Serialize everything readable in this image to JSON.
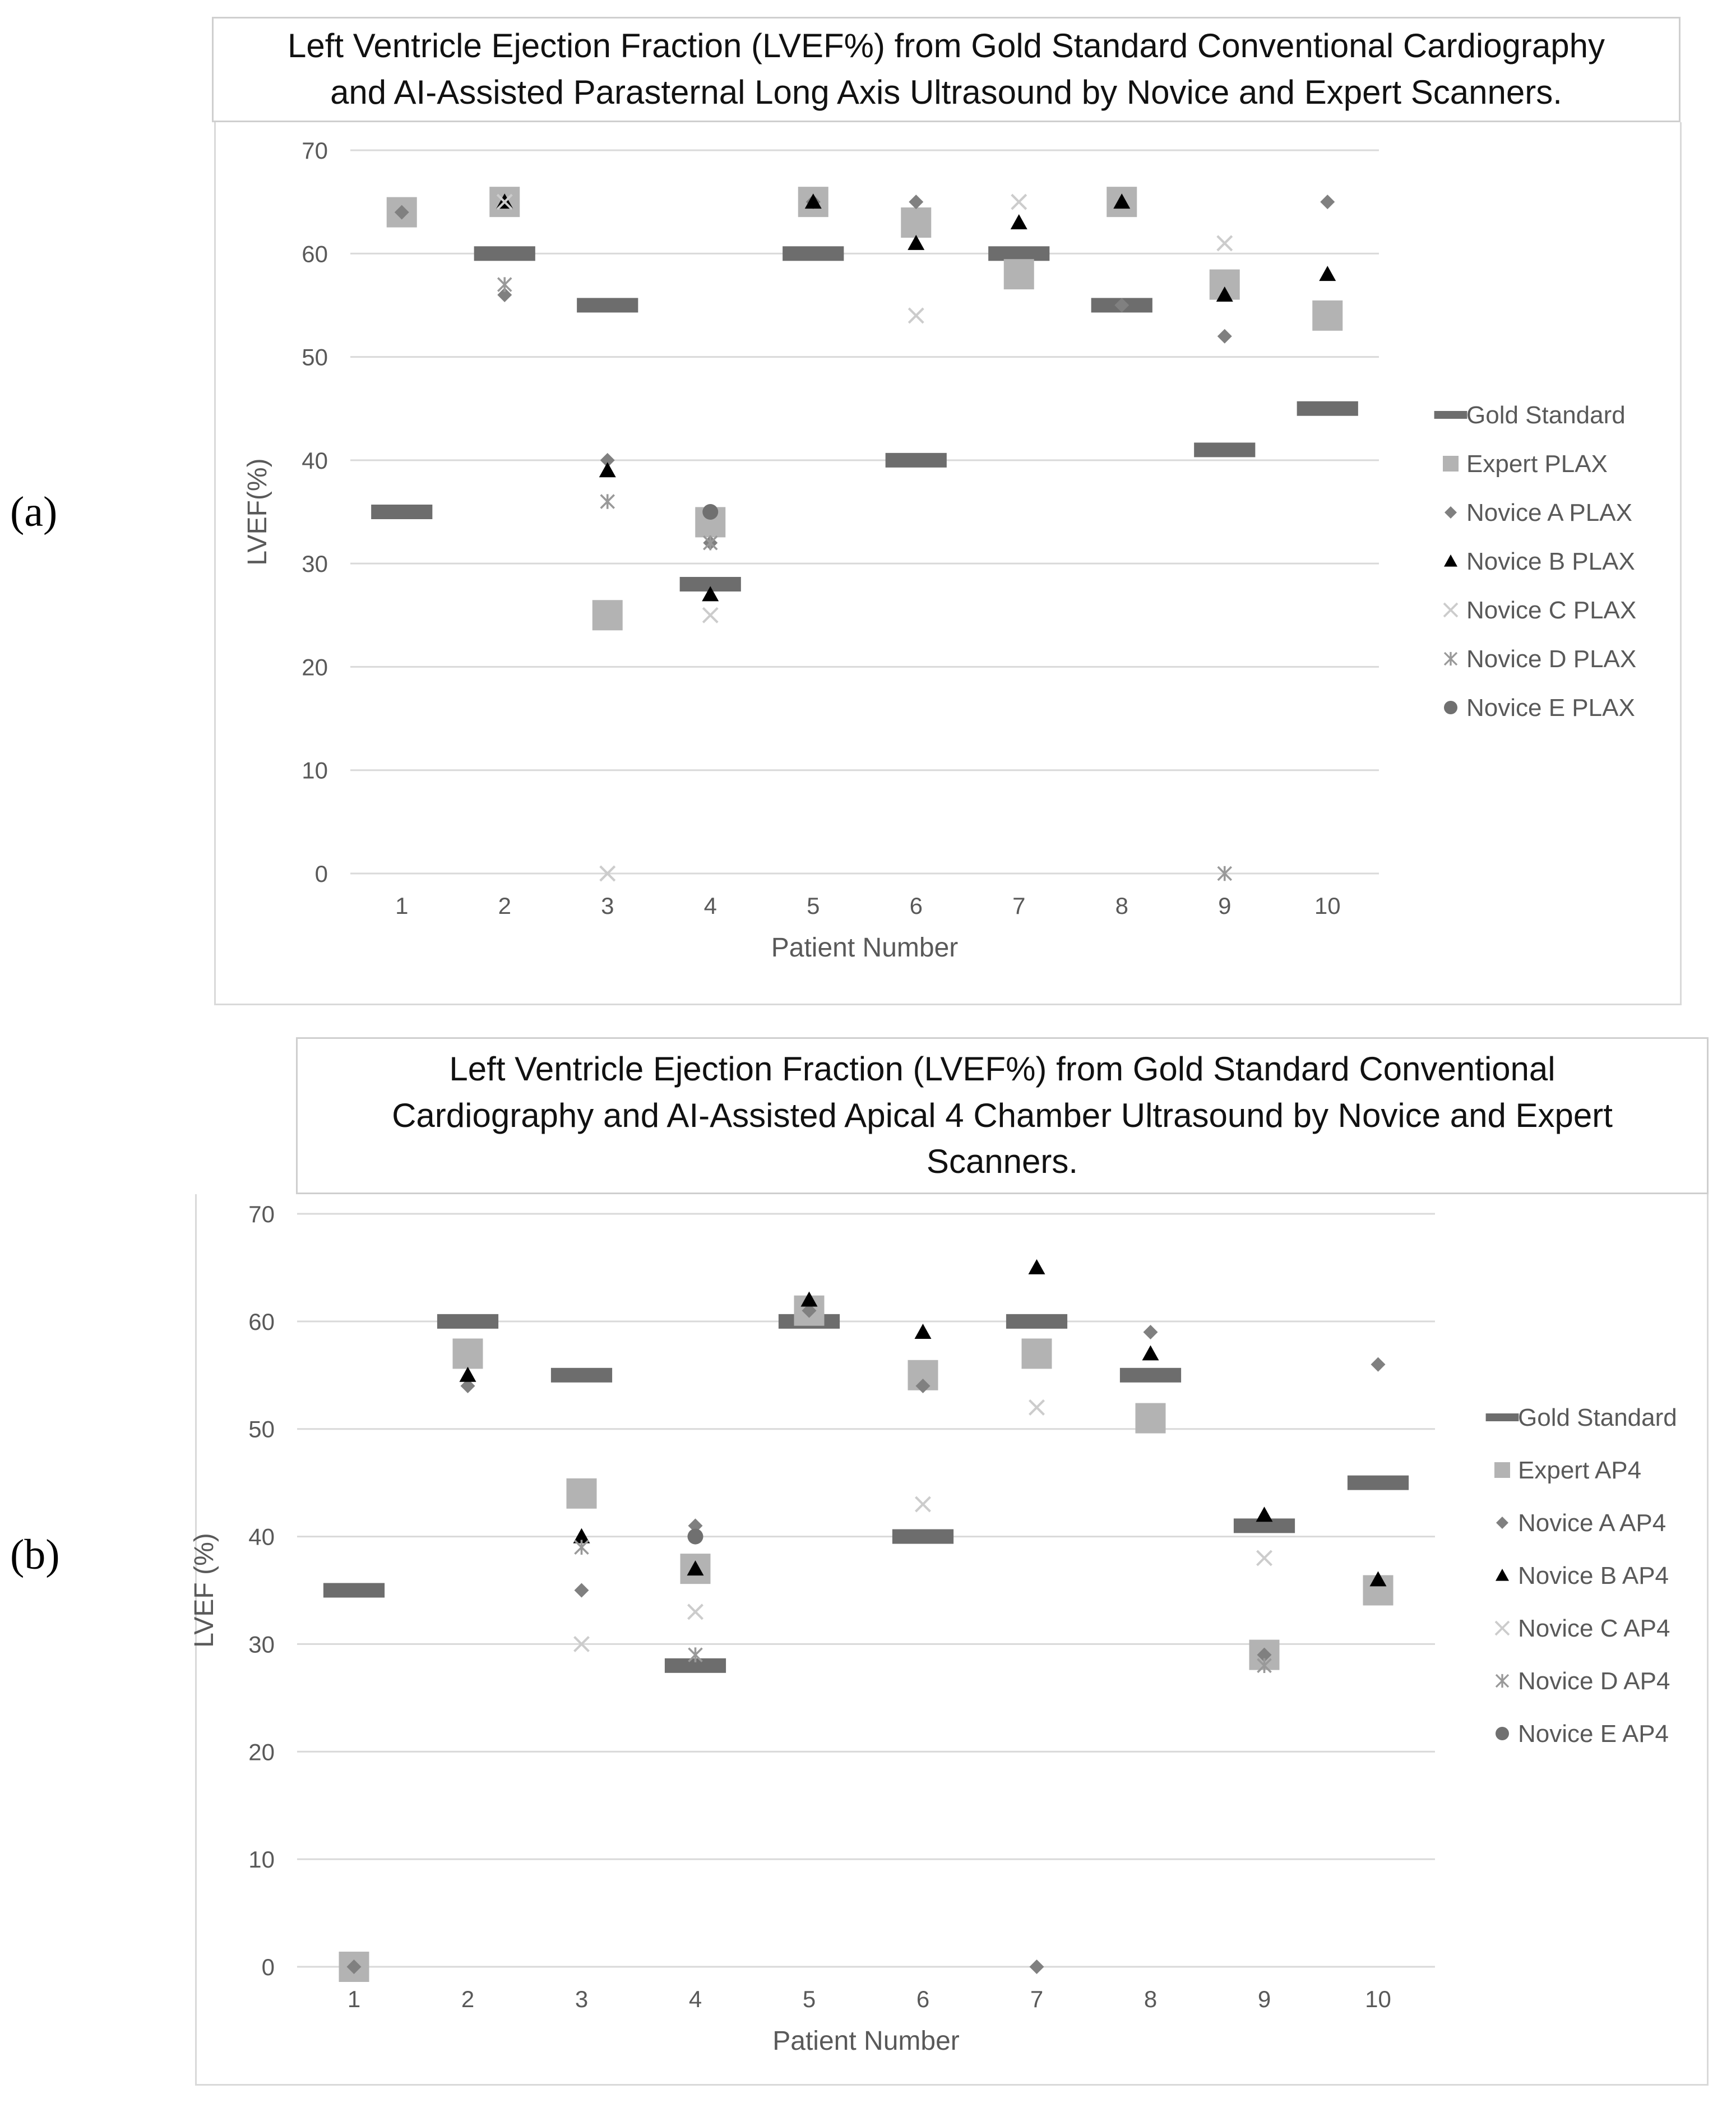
{
  "figure": {
    "panels": [
      {
        "label": "(a)"
      },
      {
        "label": "(b)"
      }
    ]
  },
  "chart_data": [
    {
      "type": "scatter",
      "title": "Left Ventricle Ejection Fraction (LVEF%) from Gold Standard Conventional Cardiography\nand AI-Assisted Parasternal Long Axis Ultrasound by Novice and Expert Scanners.",
      "xlabel": "Patient Number",
      "ylabel": "LVEF(%)",
      "ylim": [
        0,
        70
      ],
      "yticks": [
        0,
        10,
        20,
        30,
        40,
        50,
        60,
        70
      ],
      "categories": [
        "1",
        "2",
        "3",
        "4",
        "5",
        "6",
        "7",
        "8",
        "9",
        "10"
      ],
      "grid": true,
      "legend_position": "right",
      "series": [
        {
          "name": "Gold Standard",
          "marker": "dash",
          "color": "#6d6d6d",
          "values": [
            35,
            60,
            55,
            28,
            60,
            40,
            60,
            55,
            41,
            45
          ]
        },
        {
          "name": "Expert PLAX",
          "marker": "square",
          "color": "#b3b3b3",
          "values": [
            64,
            65,
            25,
            34,
            65,
            63,
            58,
            65,
            57,
            54
          ]
        },
        {
          "name": "Novice A PLAX",
          "marker": "diamond",
          "color": "#808080",
          "values": [
            64,
            56,
            40,
            32,
            65,
            65,
            null,
            55,
            52,
            65
          ]
        },
        {
          "name": "Novice B PLAX",
          "marker": "triangle",
          "color": "#000000",
          "values": [
            null,
            65,
            39,
            27,
            65,
            61,
            63,
            65,
            56,
            58
          ]
        },
        {
          "name": "Novice C PLAX",
          "marker": "x",
          "color": "#cccccc",
          "values": [
            null,
            65,
            0,
            25,
            null,
            54,
            65,
            null,
            61,
            null
          ]
        },
        {
          "name": "Novice D PLAX",
          "marker": "star",
          "color": "#999999",
          "values": [
            null,
            57,
            36,
            32,
            null,
            null,
            null,
            null,
            0,
            null
          ]
        },
        {
          "name": "Novice E PLAX",
          "marker": "circle",
          "color": "#707070",
          "values": [
            null,
            null,
            null,
            35,
            null,
            null,
            null,
            null,
            null,
            null
          ]
        }
      ]
    },
    {
      "type": "scatter",
      "title": "Left Ventricle Ejection Fraction (LVEF%) from Gold Standard Conventional\nCardiography and AI-Assisted Apical 4 Chamber Ultrasound by Novice and Expert\nScanners.",
      "xlabel": "Patient Number",
      "ylabel": "LVEF (%)",
      "ylim": [
        0,
        70
      ],
      "yticks": [
        0,
        10,
        20,
        30,
        40,
        50,
        60,
        70
      ],
      "categories": [
        "1",
        "2",
        "3",
        "4",
        "5",
        "6",
        "7",
        "8",
        "9",
        "10"
      ],
      "grid": true,
      "legend_position": "right",
      "series": [
        {
          "name": "Gold Standard",
          "marker": "dash",
          "color": "#6d6d6d",
          "values": [
            35,
            60,
            55,
            28,
            60,
            40,
            60,
            55,
            41,
            45
          ]
        },
        {
          "name": "Expert AP4",
          "marker": "square",
          "color": "#b3b3b3",
          "values": [
            0,
            57,
            44,
            37,
            61,
            55,
            57,
            51,
            29,
            35
          ]
        },
        {
          "name": "Novice A AP4",
          "marker": "diamond",
          "color": "#808080",
          "values": [
            0,
            54,
            35,
            41,
            61,
            54,
            0,
            59,
            29,
            56
          ]
        },
        {
          "name": "Novice B AP4",
          "marker": "triangle",
          "color": "#000000",
          "values": [
            null,
            55,
            40,
            37,
            62,
            59,
            65,
            57,
            42,
            36
          ]
        },
        {
          "name": "Novice C AP4",
          "marker": "x",
          "color": "#cccccc",
          "values": [
            null,
            null,
            30,
            33,
            null,
            43,
            52,
            null,
            38,
            null
          ]
        },
        {
          "name": "Novice D AP4",
          "marker": "star",
          "color": "#999999",
          "values": [
            null,
            null,
            39,
            29,
            null,
            null,
            null,
            null,
            28,
            null
          ]
        },
        {
          "name": "Novice E AP4",
          "marker": "circle",
          "color": "#707070",
          "values": [
            null,
            null,
            null,
            40,
            null,
            null,
            null,
            null,
            null,
            null
          ]
        }
      ]
    }
  ]
}
